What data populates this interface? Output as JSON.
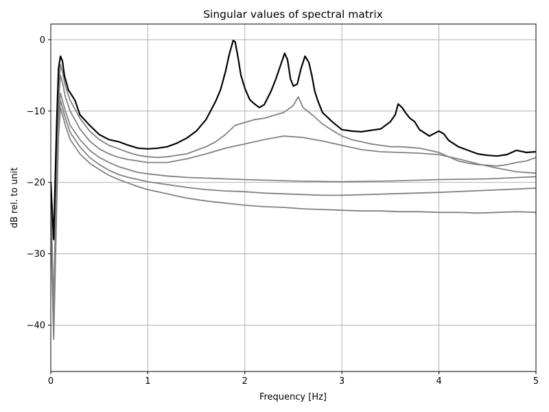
{
  "chart_data": {
    "type": "line",
    "title": "Singular values of spectral matrix",
    "xlabel": "Frequency [Hz]",
    "ylabel": "dB rel. to unit",
    "xlim": [
      0,
      5
    ],
    "ylim": [
      -46.5,
      2.2
    ],
    "xticks": [
      0,
      1,
      2,
      3,
      4,
      5
    ],
    "xtick_labels": [
      "0",
      "1",
      "2",
      "3",
      "4",
      "5"
    ],
    "yticks": [
      0,
      -10,
      -20,
      -30,
      -40
    ],
    "ytick_labels": [
      "0",
      "−10",
      "−20",
      "−30",
      "−40"
    ],
    "grid": true,
    "legend": false,
    "colors": {
      "first_singular_value": "#000000",
      "other_singular_values": "#808080",
      "grid": "#b0b0b0"
    },
    "series": [
      {
        "color": "#000000",
        "width": 2.2,
        "x": [
          0,
          0.03,
          0.06,
          0.08,
          0.1,
          0.12,
          0.14,
          0.18,
          0.25,
          0.3,
          0.4,
          0.5,
          0.6,
          0.7,
          0.8,
          0.9,
          1.0,
          1.1,
          1.2,
          1.3,
          1.4,
          1.5,
          1.6,
          1.7,
          1.75,
          1.8,
          1.84,
          1.88,
          1.9,
          1.93,
          1.96,
          2.0,
          2.05,
          2.1,
          2.15,
          2.2,
          2.27,
          2.32,
          2.37,
          2.41,
          2.44,
          2.47,
          2.5,
          2.54,
          2.58,
          2.62,
          2.66,
          2.69,
          2.72,
          2.75,
          2.8,
          2.9,
          3.0,
          3.1,
          3.2,
          3.3,
          3.4,
          3.5,
          3.55,
          3.58,
          3.62,
          3.66,
          3.7,
          3.75,
          3.8,
          3.9,
          4.0,
          4.05,
          4.1,
          4.2,
          4.3,
          4.4,
          4.5,
          4.6,
          4.7,
          4.8,
          4.9,
          5.0
        ],
        "y": [
          -20,
          -28,
          -12,
          -4,
          -2.3,
          -3,
          -5,
          -7,
          -8.5,
          -10.5,
          -12,
          -13.3,
          -14,
          -14.3,
          -14.8,
          -15.2,
          -15.3,
          -15.2,
          -15,
          -14.5,
          -13.8,
          -12.8,
          -11.2,
          -8.6,
          -7,
          -4.5,
          -2,
          -0.1,
          -0.3,
          -2.5,
          -5,
          -6.8,
          -8.4,
          -9,
          -9.5,
          -9.1,
          -7.2,
          -5.5,
          -3.5,
          -1.9,
          -2.8,
          -5.5,
          -6.5,
          -6.2,
          -4,
          -2.3,
          -3.2,
          -5,
          -7.2,
          -8.5,
          -10.2,
          -11.5,
          -12.6,
          -12.8,
          -12.9,
          -12.7,
          -12.5,
          -11.5,
          -10.5,
          -9,
          -9.5,
          -10.3,
          -11,
          -11.5,
          -12.6,
          -13.5,
          -12.8,
          -13.2,
          -14.1,
          -15,
          -15.5,
          -16,
          -16.2,
          -16.3,
          -16.1,
          -15.5,
          -15.8,
          -15.7
        ]
      },
      {
        "color": "#808080",
        "width": 1.8,
        "x": [
          0,
          0.03,
          0.06,
          0.08,
          0.1,
          0.12,
          0.15,
          0.2,
          0.3,
          0.4,
          0.5,
          0.6,
          0.7,
          0.8,
          0.9,
          1.0,
          1.1,
          1.2,
          1.3,
          1.4,
          1.5,
          1.6,
          1.7,
          1.8,
          1.9,
          2.0,
          2.1,
          2.2,
          2.3,
          2.4,
          2.5,
          2.55,
          2.6,
          2.7,
          2.8,
          2.9,
          3.0,
          3.1,
          3.2,
          3.3,
          3.4,
          3.5,
          3.6,
          3.7,
          3.8,
          3.9,
          4.0,
          4.1,
          4.2,
          4.3,
          4.4,
          4.5,
          4.6,
          4.7,
          4.8,
          4.9,
          5.0
        ],
        "y": [
          -21,
          -38,
          -15,
          -6.5,
          -3.5,
          -4.5,
          -6.5,
          -8.5,
          -11,
          -12.8,
          -14,
          -14.8,
          -15.3,
          -15.8,
          -16.2,
          -16.4,
          -16.5,
          -16.4,
          -16.2,
          -16,
          -15.5,
          -15,
          -14.3,
          -13.3,
          -12,
          -11.6,
          -11.2,
          -11,
          -10.6,
          -10.2,
          -9.2,
          -8,
          -9.5,
          -10.6,
          -11.8,
          -12.7,
          -13.5,
          -14,
          -14.3,
          -14.6,
          -14.8,
          -15,
          -15,
          -15.1,
          -15.2,
          -15.5,
          -15.8,
          -16.4,
          -17,
          -17.3,
          -17.5,
          -17.6,
          -17.7,
          -17.5,
          -17.2,
          -17,
          -16.5
        ]
      },
      {
        "color": "#808080",
        "width": 1.8,
        "x": [
          0,
          0.03,
          0.06,
          0.08,
          0.1,
          0.12,
          0.15,
          0.2,
          0.3,
          0.4,
          0.5,
          0.6,
          0.7,
          0.8,
          0.9,
          1.0,
          1.2,
          1.4,
          1.6,
          1.8,
          2.0,
          2.2,
          2.4,
          2.6,
          2.8,
          3.0,
          3.2,
          3.4,
          3.6,
          3.8,
          4.0,
          4.2,
          4.4,
          4.6,
          4.8,
          5.0
        ],
        "y": [
          -22,
          -40,
          -18,
          -8.5,
          -5,
          -6,
          -8,
          -10,
          -12.5,
          -14.2,
          -15.3,
          -16,
          -16.5,
          -16.8,
          -17,
          -17.2,
          -17.2,
          -16.7,
          -16,
          -15.2,
          -14.6,
          -14,
          -13.5,
          -13.7,
          -14.2,
          -14.8,
          -15.4,
          -15.7,
          -15.8,
          -15.9,
          -16.1,
          -16.7,
          -17.4,
          -18,
          -18.5,
          -18.7
        ]
      },
      {
        "color": "#808080",
        "width": 1.8,
        "x": [
          0,
          0.03,
          0.06,
          0.08,
          0.1,
          0.12,
          0.15,
          0.2,
          0.3,
          0.4,
          0.5,
          0.6,
          0.7,
          0.8,
          0.9,
          1.0,
          1.2,
          1.4,
          1.6,
          1.8,
          2.0,
          2.5,
          3.0,
          3.5,
          4.0,
          4.5,
          5.0
        ],
        "y": [
          -23,
          -41,
          -20,
          -10.5,
          -7.5,
          -8.5,
          -10,
          -12,
          -14,
          -15.5,
          -16.5,
          -17.2,
          -17.8,
          -18.2,
          -18.6,
          -18.8,
          -19.1,
          -19.3,
          -19.4,
          -19.5,
          -19.6,
          -19.8,
          -19.9,
          -19.8,
          -19.6,
          -19.5,
          -19.2
        ]
      },
      {
        "color": "#808080",
        "width": 1.8,
        "x": [
          0,
          0.03,
          0.06,
          0.08,
          0.1,
          0.12,
          0.15,
          0.2,
          0.3,
          0.4,
          0.5,
          0.6,
          0.7,
          0.8,
          0.9,
          1.0,
          1.2,
          1.4,
          1.6,
          1.8,
          2.0,
          2.2,
          2.4,
          2.6,
          2.8,
          3.0,
          3.5,
          4.0,
          4.5,
          5.0
        ],
        "y": [
          -24,
          -41.5,
          -22,
          -12,
          -8.5,
          -9.5,
          -11,
          -13,
          -15,
          -16.5,
          -17.5,
          -18.3,
          -18.9,
          -19.3,
          -19.6,
          -19.9,
          -20.3,
          -20.7,
          -21,
          -21.2,
          -21.3,
          -21.5,
          -21.6,
          -21.7,
          -21.8,
          -21.8,
          -21.6,
          -21.4,
          -21.1,
          -20.8
        ]
      },
      {
        "color": "#808080",
        "width": 1.8,
        "x": [
          0,
          0.03,
          0.06,
          0.08,
          0.1,
          0.12,
          0.15,
          0.2,
          0.3,
          0.4,
          0.5,
          0.6,
          0.7,
          0.8,
          0.9,
          1.0,
          1.2,
          1.4,
          1.6,
          1.8,
          2.0,
          2.2,
          2.4,
          2.6,
          2.8,
          3.0,
          3.2,
          3.4,
          3.6,
          3.8,
          4.0,
          4.2,
          4.4,
          4.6,
          4.8,
          5.0
        ],
        "y": [
          -25,
          -42,
          -24,
          -13.5,
          -9.5,
          -10.5,
          -12,
          -14,
          -16,
          -17.3,
          -18.2,
          -19,
          -19.6,
          -20.1,
          -20.6,
          -21,
          -21.6,
          -22.2,
          -22.6,
          -22.9,
          -23.2,
          -23.4,
          -23.5,
          -23.7,
          -23.8,
          -23.9,
          -24,
          -24,
          -24.1,
          -24.1,
          -24.2,
          -24.2,
          -24.3,
          -24.2,
          -24.1,
          -24.2
        ]
      }
    ]
  }
}
